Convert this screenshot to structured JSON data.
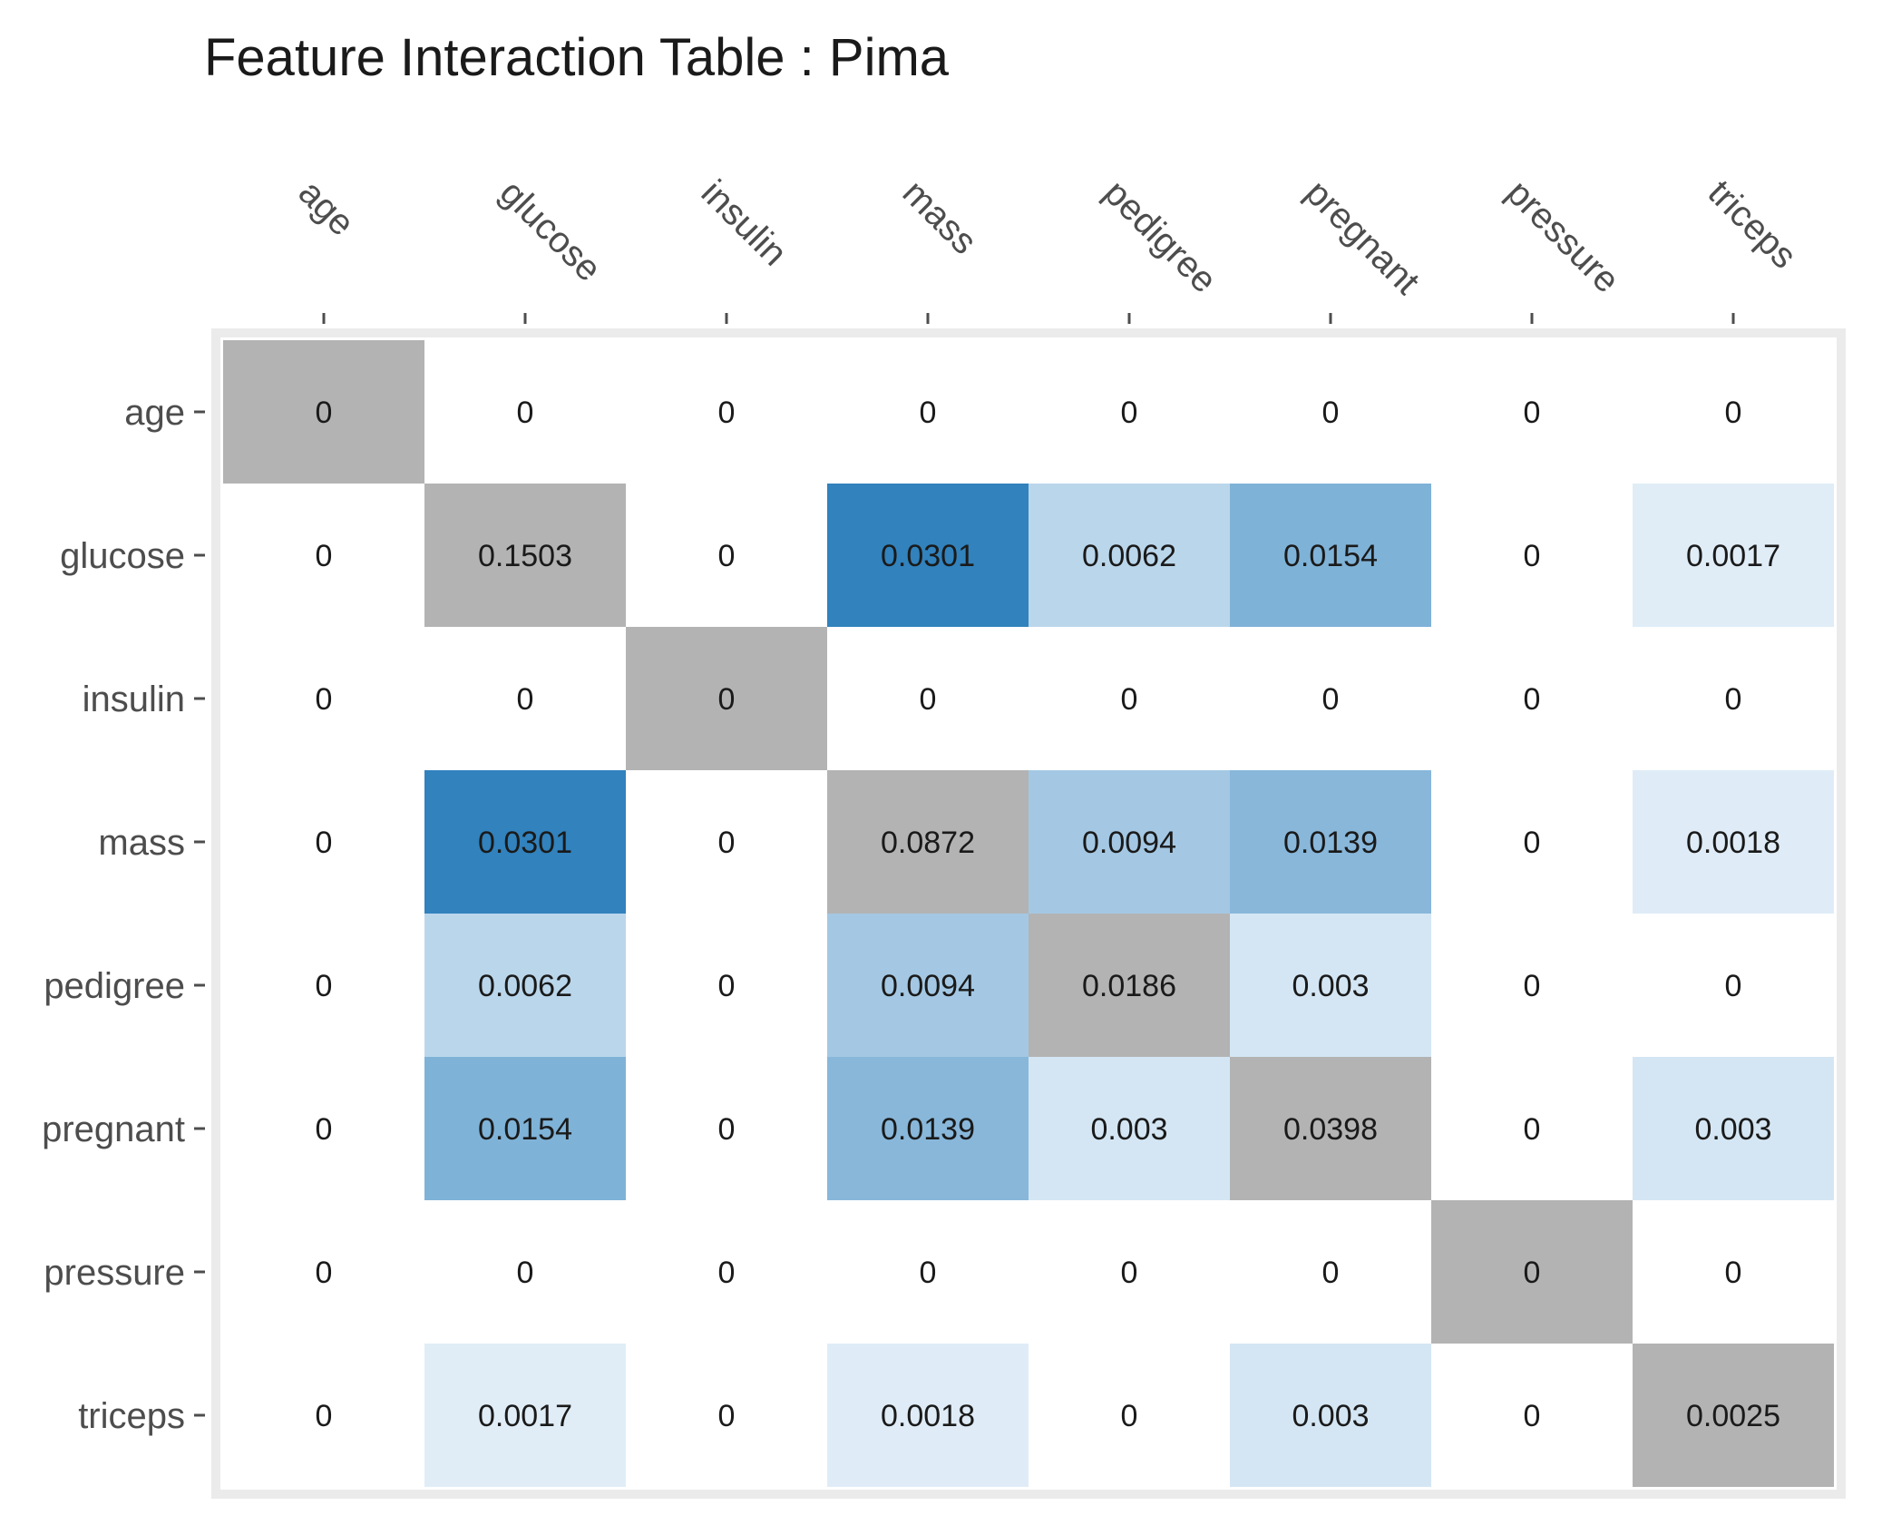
{
  "chart_data": {
    "type": "heatmap",
    "title": "Feature Interaction Table : Pima",
    "xlabel": "",
    "ylabel": "",
    "x_categories": [
      "age",
      "glucose",
      "insulin",
      "mass",
      "pedigree",
      "pregnant",
      "pressure",
      "triceps"
    ],
    "y_categories": [
      "age",
      "glucose",
      "insulin",
      "mass",
      "pedigree",
      "pregnant",
      "pressure",
      "triceps"
    ],
    "x_axis_position": "top",
    "grid": false,
    "legend": "none",
    "values": [
      [
        "0",
        "0",
        "0",
        "0",
        "0",
        "0",
        "0",
        "0"
      ],
      [
        "0",
        "0.1503",
        "0",
        "0.0301",
        "0.0062",
        "0.0154",
        "0",
        "0.0017"
      ],
      [
        "0",
        "0",
        "0",
        "0",
        "0",
        "0",
        "0",
        "0"
      ],
      [
        "0",
        "0.0301",
        "0",
        "0.0872",
        "0.0094",
        "0.0139",
        "0",
        "0.0018"
      ],
      [
        "0",
        "0.0062",
        "0",
        "0.0094",
        "0.0186",
        "0.003",
        "0",
        "0"
      ],
      [
        "0",
        "0.0154",
        "0",
        "0.0139",
        "0.003",
        "0.0398",
        "0",
        "0.003"
      ],
      [
        "0",
        "0",
        "0",
        "0",
        "0",
        "0",
        "0",
        "0"
      ],
      [
        "0",
        "0.0017",
        "0",
        "0.0018",
        "0",
        "0.003",
        "0",
        "0.0025"
      ]
    ],
    "colors": {
      "diagonal": "#b3b3b3",
      "scale_low": "#f7fbff",
      "scale_high": "#3182bd",
      "panel_border": "#ebebeb",
      "background": "#ffffff"
    }
  }
}
